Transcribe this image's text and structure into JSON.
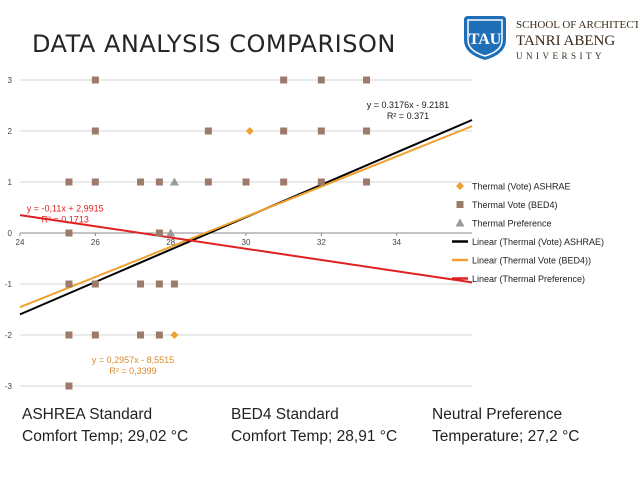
{
  "slide": {
    "title": "DATA ANALYSIS COMPARISON"
  },
  "logo": {
    "school": "SCHOOL OF ARCHITECTURE",
    "name": "TANRI ABENG",
    "sub": "UNIVERSITY",
    "mark": "TAU",
    "colors": {
      "mark_blue": "#1f6fb8",
      "text": "#3a2a1a"
    }
  },
  "footer": {
    "ashrae": {
      "line1": "ASHREA Standard",
      "line2": "Comfort Temp; 29,02 °C"
    },
    "bed4": {
      "line1": "BED4 Standard",
      "line2": "Comfort Temp; 28,91 °C"
    },
    "neutral": {
      "line1": "Neutral Preference",
      "line2": "Temperature; 27,2 °C"
    }
  },
  "chart_data": {
    "type": "scatter",
    "xlim": [
      24,
      36
    ],
    "ylim": [
      -3,
      3
    ],
    "x_ticks": [
      "24",
      "26",
      "28",
      "30",
      "32",
      "34"
    ],
    "y_ticks": [
      "3",
      "2",
      "1",
      "0",
      "-1",
      "-2",
      "-3"
    ],
    "grid": "horizontal",
    "legend_position": "right",
    "series": [
      {
        "name": "Thermal (Vote) ASHRAE",
        "marker": "diamond",
        "color": "#f0a030",
        "points": [
          [
            30.1,
            2
          ],
          [
            28.1,
            -2
          ]
        ]
      },
      {
        "name": "Thermal Vote (BED4)",
        "marker": "square",
        "color": "#9c7b6b",
        "points": [
          [
            26,
            3
          ],
          [
            31,
            3
          ],
          [
            32,
            3
          ],
          [
            33.2,
            3
          ],
          [
            26,
            2
          ],
          [
            29,
            2
          ],
          [
            31,
            2
          ],
          [
            32,
            2
          ],
          [
            33.2,
            2
          ],
          [
            25.3,
            1
          ],
          [
            26,
            1
          ],
          [
            27.2,
            1
          ],
          [
            27.7,
            1
          ],
          [
            29,
            1
          ],
          [
            30,
            1
          ],
          [
            31,
            1
          ],
          [
            32,
            1
          ],
          [
            33.2,
            1
          ],
          [
            25.3,
            0
          ],
          [
            27.7,
            0
          ],
          [
            25.3,
            -1
          ],
          [
            26,
            -1
          ],
          [
            27.2,
            -1
          ],
          [
            27.7,
            -1
          ],
          [
            28.1,
            -1
          ],
          [
            25.3,
            -2
          ],
          [
            26,
            -2
          ],
          [
            27.2,
            -2
          ],
          [
            27.7,
            -2
          ],
          [
            25.3,
            -3
          ]
        ]
      },
      {
        "name": "Thermal Preference",
        "marker": "triangle",
        "color": "#9a9a9a",
        "points": [
          [
            28.1,
            1
          ],
          [
            28,
            0
          ]
        ]
      }
    ],
    "trendlines": [
      {
        "name": "Linear (Thermal (Vote) ASHRAE)",
        "color": "#000000",
        "slope": 0.3176,
        "intercept": -9.2181,
        "equation": "y = 0.3176x - 9.2181",
        "r2": "R² = 0.371",
        "label_color": "#1a1a1a"
      },
      {
        "name": "Linear (Thermal Vote (BED4))",
        "color": "#f0a030",
        "slope": 0.2957,
        "intercept": -8.5515,
        "equation": "y = 0,2957x - 8,5515",
        "r2": "R² = 0,3399",
        "label_color": "#d98b2b"
      },
      {
        "name": "Linear (Thermal Preference)",
        "color": "#e02020",
        "slope": -0.11,
        "intercept": 2.9915,
        "equation": "y = -0,11x + 2,9915",
        "r2": "R² = 0,1713",
        "label_color": "#e02020"
      }
    ]
  }
}
